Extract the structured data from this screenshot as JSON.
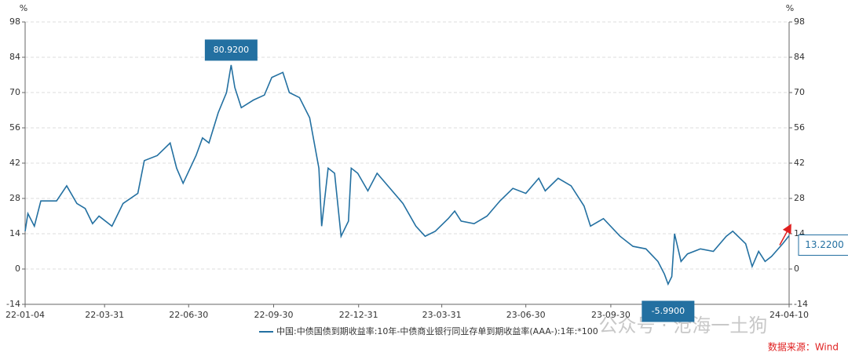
{
  "chart_data": {
    "type": "line",
    "y_unit": "%",
    "y2_unit": "%",
    "x": [
      "22-01-04",
      "22-01-07",
      "22-01-14",
      "22-01-21",
      "22-02-07",
      "22-02-18",
      "22-03-01",
      "22-03-10",
      "22-03-18",
      "22-03-25",
      "22-04-08",
      "22-04-20",
      "22-05-06",
      "22-05-13",
      "22-05-27",
      "22-06-10",
      "22-06-17",
      "22-06-24",
      "22-07-08",
      "22-07-15",
      "22-07-22",
      "22-08-01",
      "22-08-10",
      "22-08-15",
      "22-08-19",
      "22-08-26",
      "22-09-08",
      "22-09-20",
      "22-09-28",
      "22-10-10",
      "22-10-17",
      "22-10-28",
      "22-11-08",
      "22-11-18",
      "22-11-21",
      "22-11-28",
      "22-12-05",
      "22-12-12",
      "22-12-20",
      "22-12-23",
      "22-12-30",
      "23-01-10",
      "23-01-20",
      "23-02-03",
      "23-02-17",
      "23-03-03",
      "23-03-13",
      "23-03-24",
      "23-04-07",
      "23-04-14",
      "23-04-21",
      "23-05-05",
      "23-05-19",
      "23-06-02",
      "23-06-16",
      "23-06-30",
      "23-07-14",
      "23-07-21",
      "23-08-04",
      "23-08-18",
      "23-09-01",
      "23-09-08",
      "23-09-22",
      "23-10-10",
      "23-10-24",
      "23-11-07",
      "23-11-20",
      "23-11-27",
      "23-12-01",
      "23-12-05",
      "23-12-08",
      "23-12-15",
      "23-12-22",
      "24-01-05",
      "24-01-19",
      "24-02-02",
      "24-02-09",
      "24-02-23",
      "24-03-01",
      "24-03-08",
      "24-03-15",
      "24-03-22",
      "24-04-03",
      "24-04-10"
    ],
    "series": [
      {
        "name": "中国:中债国债到期收益率:10年-中债商业银行同业存单到期收益率(AAA-):1年:*100",
        "color": "#2370a1",
        "values": [
          15,
          22,
          17,
          27,
          27,
          33,
          26,
          24,
          18,
          21,
          17,
          26,
          30,
          43,
          45,
          50,
          40,
          34,
          45,
          52,
          50,
          62,
          70,
          80.92,
          72,
          64,
          67,
          69,
          76,
          78,
          70,
          68,
          60,
          40,
          17,
          40,
          38,
          13,
          19,
          40,
          38,
          31,
          38,
          32,
          26,
          17,
          13,
          15,
          20,
          23,
          19,
          18,
          21,
          27,
          32,
          30,
          36,
          31,
          36,
          33,
          25,
          17,
          20,
          13,
          9,
          8,
          3,
          -2,
          -5.99,
          -3,
          14,
          3,
          6,
          8,
          7,
          13,
          15,
          10,
          1,
          7,
          3,
          5,
          10,
          13.22
        ]
      }
    ],
    "xlim": [
      "22-01-04",
      "24-04-10"
    ],
    "xticks": [
      "22-01-04",
      "22-03-31",
      "22-06-30",
      "22-09-30",
      "22-12-31",
      "23-03-31",
      "23-06-30",
      "23-09-30",
      "24-04-10"
    ],
    "ylim": [
      -14,
      98
    ],
    "yticks": [
      -14,
      0,
      14,
      28,
      42,
      56,
      70,
      84,
      98
    ],
    "y2lim": [
      -14,
      98
    ],
    "y2ticks": [
      -14,
      0,
      14,
      28,
      42,
      56,
      70,
      84,
      98
    ],
    "grid": true,
    "annotations": [
      {
        "x": "22-08-15",
        "y": 80.92,
        "label": "80.9200"
      },
      {
        "x": "23-12-01",
        "y": -5.99,
        "label": "-5.9900"
      },
      {
        "x": "24-04-10",
        "y": 13.22,
        "label": "13.2200"
      }
    ],
    "watermark": "公众号 · 沧海一土狗",
    "source": "数据来源：Wind"
  }
}
